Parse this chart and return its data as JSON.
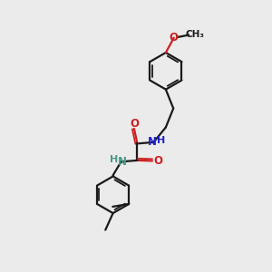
{
  "bg_color": "#ebebeb",
  "bond_color": "#1a1a1a",
  "N_color": "#2020cc",
  "O_color": "#cc2020",
  "N2_color": "#4a9a8a",
  "lw": 1.6,
  "lw_dbl": 1.3,
  "dbl_off": 0.07,
  "r_ring": 0.68,
  "fig_w": 3.0,
  "fig_h": 3.0,
  "dpi": 100,
  "xlim": [
    0,
    10
  ],
  "ylim": [
    0,
    10
  ]
}
